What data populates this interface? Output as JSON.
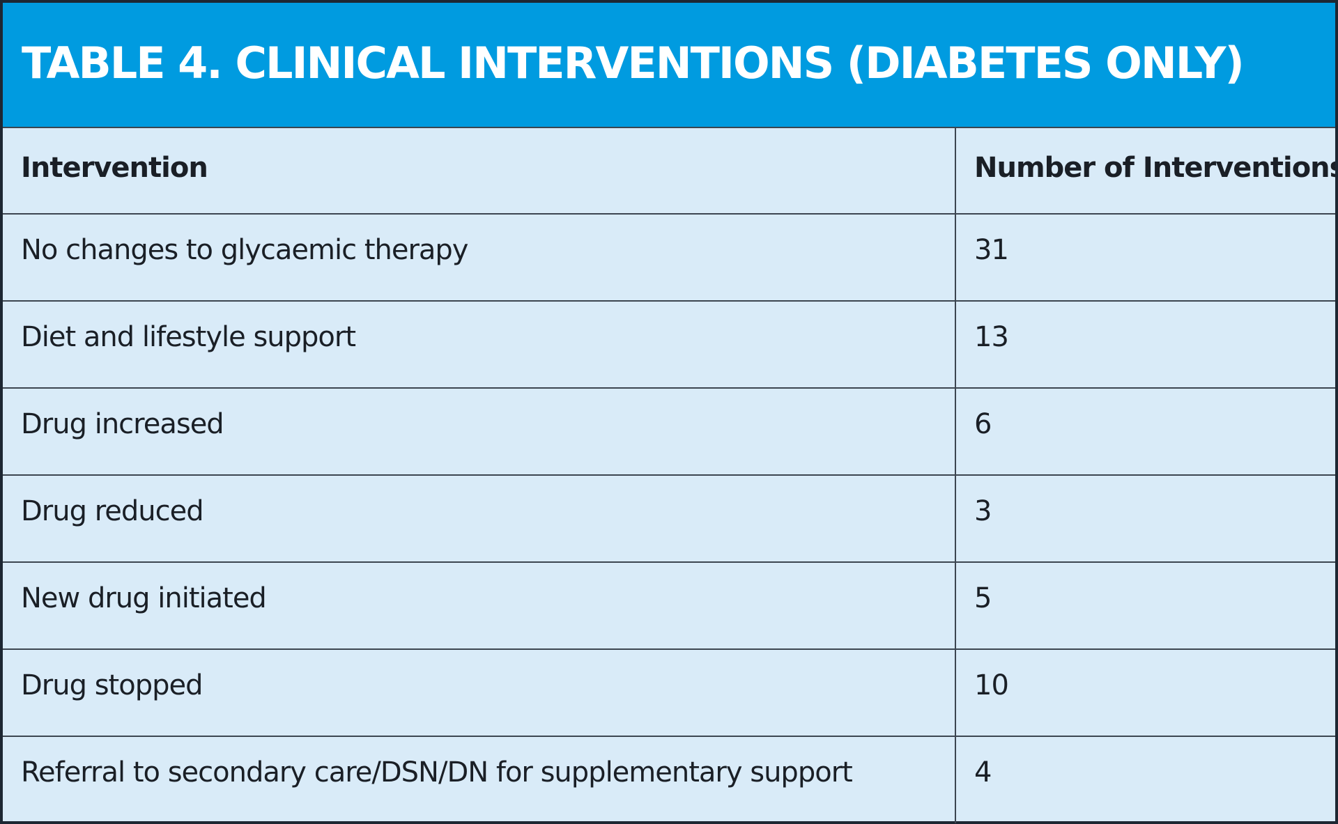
{
  "title": "TABLE 4. CLINICAL INTERVENTIONS (DIABETES ONLY)",
  "columns": [
    "Intervention",
    "Number of Interventions"
  ],
  "rows": [
    {
      "intervention": "No changes to glycaemic therapy",
      "count": "31"
    },
    {
      "intervention": "Diet and lifestyle support",
      "count": "13"
    },
    {
      "intervention": "Drug increased",
      "count": "6"
    },
    {
      "intervention": "Drug reduced",
      "count": "3"
    },
    {
      "intervention": "New drug initiated",
      "count": "5"
    },
    {
      "intervention": "Drug stopped",
      "count": "10"
    },
    {
      "intervention": "Referral to secondary care/DSN/DN for supplementary support",
      "count": "4"
    }
  ],
  "colors": {
    "header_bar": "#009be0",
    "table_background": "#d9ebf8",
    "border": "#3c4550",
    "title_text": "#ffffff",
    "body_text": "#1a1f26"
  }
}
